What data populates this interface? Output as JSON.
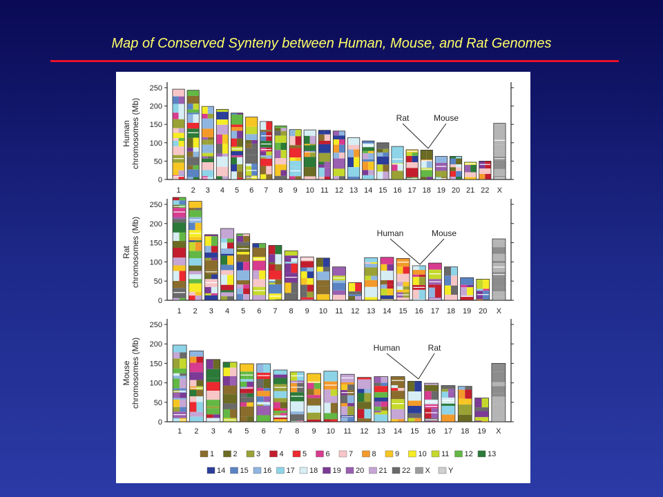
{
  "slide": {
    "title": "Map of Conserved Synteny between Human, Mouse, and Rat Genomes"
  },
  "chart_data": [
    {
      "type": "bar",
      "genome": "Human",
      "ylabel": "Human chromosomes (Mb)",
      "ylim": [
        0,
        250
      ],
      "yticks": [
        0,
        50,
        100,
        150,
        200,
        250
      ],
      "categories": [
        "1",
        "2",
        "3",
        "4",
        "5",
        "6",
        "7",
        "8",
        "9",
        "10",
        "11",
        "12",
        "13",
        "14",
        "15",
        "16",
        "17",
        "18",
        "19",
        "20",
        "21",
        "22",
        "X"
      ],
      "values": [
        246,
        243,
        199,
        191,
        181,
        170,
        158,
        146,
        136,
        135,
        134,
        132,
        114,
        105,
        100,
        90,
        81,
        80,
        63,
        63,
        47,
        50,
        153
      ],
      "annotations": [
        {
          "text": "Rat"
        },
        {
          "text": "Mouse"
        }
      ]
    },
    {
      "type": "bar",
      "genome": "Rat",
      "ylabel": "Rat chromosomes (Mb)",
      "ylim": [
        0,
        250
      ],
      "yticks": [
        0,
        50,
        100,
        150,
        200,
        250
      ],
      "categories": [
        "1",
        "2",
        "3",
        "4",
        "5",
        "6",
        "7",
        "8",
        "9",
        "10",
        "11",
        "12",
        "13",
        "14",
        "15",
        "16",
        "17",
        "18",
        "19",
        "20",
        "X"
      ],
      "values": [
        268,
        258,
        171,
        187,
        173,
        148,
        143,
        129,
        113,
        110,
        87,
        46,
        111,
        112,
        109,
        90,
        97,
        87,
        59,
        55,
        160
      ],
      "annotations": [
        {
          "text": "Human"
        },
        {
          "text": "Mouse"
        }
      ]
    },
    {
      "type": "bar",
      "genome": "Mouse",
      "ylabel": "Mouse chromosomes (Mb)",
      "ylim": [
        0,
        250
      ],
      "yticks": [
        0,
        50,
        100,
        150,
        200,
        250
      ],
      "categories": [
        "1",
        "2",
        "3",
        "4",
        "5",
        "6",
        "7",
        "8",
        "9",
        "10",
        "11",
        "12",
        "13",
        "14",
        "15",
        "16",
        "17",
        "18",
        "19",
        "X"
      ],
      "values": [
        197,
        182,
        160,
        153,
        149,
        149,
        133,
        128,
        124,
        130,
        122,
        114,
        116,
        116,
        104,
        99,
        93,
        91,
        61,
        150
      ],
      "annotations": [
        {
          "text": "Human"
        },
        {
          "text": "Rat"
        }
      ]
    }
  ],
  "legend": {
    "entries": [
      {
        "label": "1",
        "color": "#8a6d2d"
      },
      {
        "label": "2",
        "color": "#6b6b24"
      },
      {
        "label": "3",
        "color": "#9aa236"
      },
      {
        "label": "4",
        "color": "#c41e2e"
      },
      {
        "label": "5",
        "color": "#ec2a2f"
      },
      {
        "label": "6",
        "color": "#d83c8e"
      },
      {
        "label": "7",
        "color": "#f7c6c7"
      },
      {
        "label": "8",
        "color": "#f39a2b"
      },
      {
        "label": "9",
        "color": "#f7c623"
      },
      {
        "label": "10",
        "color": "#f6ec24"
      },
      {
        "label": "11",
        "color": "#c5d92c"
      },
      {
        "label": "12",
        "color": "#63b845"
      },
      {
        "label": "13",
        "color": "#2b7a38"
      },
      {
        "label": "14",
        "color": "#2c3e9b"
      },
      {
        "label": "15",
        "color": "#5a83c4"
      },
      {
        "label": "16",
        "color": "#8fb6e0"
      },
      {
        "label": "17",
        "color": "#8ed4e8"
      },
      {
        "label": "18",
        "color": "#d6eef4"
      },
      {
        "label": "19",
        "color": "#7b3a96"
      },
      {
        "label": "20",
        "color": "#9a5fb0"
      },
      {
        "label": "21",
        "color": "#c5a6d4"
      },
      {
        "label": "22",
        "color": "#6a6a6a"
      },
      {
        "label": "X",
        "color": "#9c9c9c"
      },
      {
        "label": "Y",
        "color": "#cfcfcf"
      }
    ]
  }
}
